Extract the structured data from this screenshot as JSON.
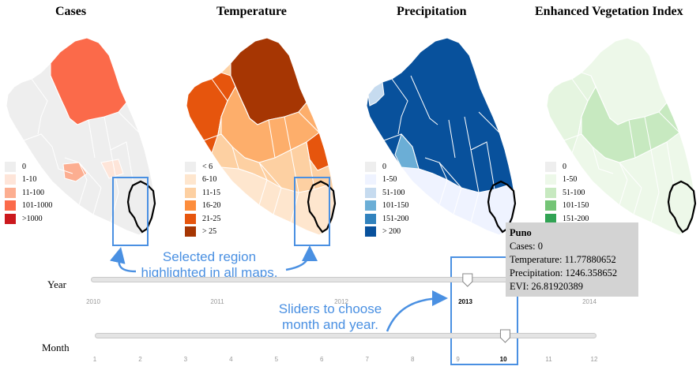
{
  "maps": [
    {
      "id": "cases",
      "title": "Cases",
      "fill": "#eeeeee",
      "region_colors": {
        "north": "#fb6a4a",
        "coast_patch": "#fcae91",
        "south_patch": "#fee5d9"
      },
      "legend": [
        {
          "label": "0",
          "color": "#eeeeee"
        },
        {
          "label": "1-10",
          "color": "#fee5d9"
        },
        {
          "label": "11-100",
          "color": "#fcae91"
        },
        {
          "label": "101-1000",
          "color": "#fb6a4a"
        },
        {
          "label": ">1000",
          "color": "#cb181d"
        }
      ]
    },
    {
      "id": "temperature",
      "title": "Temperature",
      "fill": "#fdd0a2",
      "region_colors": {
        "north": "#a63603",
        "mid": "#e6550d",
        "coast": "#fdae6b",
        "highland": "#fee6ce"
      },
      "legend": [
        {
          "label": "< 6",
          "color": "#eeeeee"
        },
        {
          "label": "6-10",
          "color": "#fee6ce"
        },
        {
          "label": "11-15",
          "color": "#fdd0a2"
        },
        {
          "label": "16-20",
          "color": "#fd8d3c"
        },
        {
          "label": "21-25",
          "color": "#e6550d"
        },
        {
          "label": "> 25",
          "color": "#a63603"
        }
      ]
    },
    {
      "id": "precipitation",
      "title": "Precipitation",
      "fill": "#08519c",
      "region_colors": {
        "coast_light": "#c6dbef",
        "coast_mid": "#6baed6",
        "south": "#eff3ff"
      },
      "legend": [
        {
          "label": "0",
          "color": "#eeeeee"
        },
        {
          "label": "1-50",
          "color": "#eff3ff"
        },
        {
          "label": "51-100",
          "color": "#c6dbef"
        },
        {
          "label": "101-150",
          "color": "#6baed6"
        },
        {
          "label": "151-200",
          "color": "#3182bd"
        },
        {
          "label": "> 200",
          "color": "#08519c"
        }
      ]
    },
    {
      "id": "evi",
      "title": "Enhanced Vegetation Index",
      "fill": "#edf8e9",
      "region_colors": {
        "highland": "#c7e9c0",
        "mid": "#e5f5e0"
      },
      "legend": [
        {
          "label": "0",
          "color": "#eeeeee"
        },
        {
          "label": "1-50",
          "color": "#edf8e9"
        },
        {
          "label": "51-100",
          "color": "#c7e9c0"
        },
        {
          "label": "101-150",
          "color": "#74c476"
        },
        {
          "label": "151-200",
          "color": "#31a354"
        }
      ]
    }
  ],
  "tooltip": {
    "title": "Puno",
    "lines": [
      "Cases: 0",
      "Temperature: 11.77880652",
      "Precipitation: 1246.358652",
      "EVI: 26.81920389"
    ]
  },
  "annotations": {
    "region": "Selected region\nhighlighted in all maps.",
    "sliders": "Sliders to choose\nmonth and year."
  },
  "year_slider": {
    "label": "Year",
    "ticks": [
      "2010",
      "2011",
      "2012",
      "2013",
      "2014"
    ],
    "value": "2013",
    "min": 2010,
    "max": 2014,
    "fraction": 0.745
  },
  "month_slider": {
    "label": "Month",
    "ticks": [
      "1",
      "2",
      "3",
      "4",
      "5",
      "6",
      "7",
      "8",
      "9",
      "10",
      "11",
      "12"
    ],
    "value": "10",
    "min": 1,
    "max": 12,
    "fraction": 0.818
  },
  "highlight_color": "#4a90e2"
}
